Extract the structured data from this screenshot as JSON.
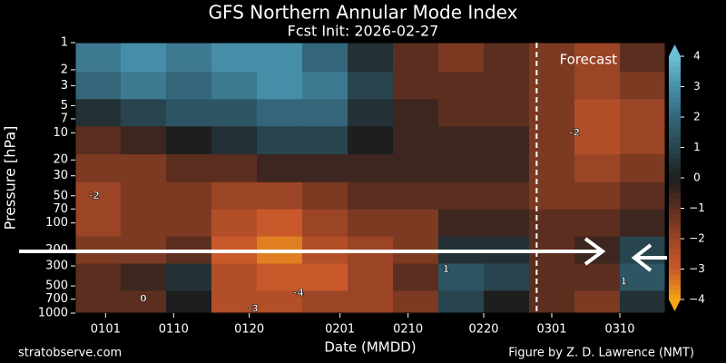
{
  "chart_data": {
    "type": "contour",
    "title": "GFS Northern Annular Mode Index",
    "subtitle": "Fcst Init: 2026-02-27",
    "xlabel": "Date (MMDD)",
    "ylabel": "Pressure [hPa]",
    "forecast_label": "Forecast",
    "forecast_x": 57,
    "source": "stratobserve.com",
    "credit": "Figure by Z. D. Lawrence (NMT)",
    "xlim": [
      -4,
      74
    ],
    "xticks": [
      {
        "value": 0,
        "label": "0101"
      },
      {
        "value": 9,
        "label": "0110"
      },
      {
        "value": 19,
        "label": "0120"
      },
      {
        "value": 31,
        "label": "0201"
      },
      {
        "value": 40,
        "label": "0210"
      },
      {
        "value": 50,
        "label": "0220"
      },
      {
        "value": 59,
        "label": "0301"
      },
      {
        "value": 68,
        "label": "0310"
      }
    ],
    "ylim": [
      1000,
      1
    ],
    "ylog": true,
    "yticks": [
      1,
      2,
      3,
      5,
      7,
      10,
      20,
      30,
      50,
      70,
      100,
      200,
      300,
      500,
      700,
      1000
    ],
    "x": [
      -1,
      5,
      11,
      17,
      23,
      29,
      35,
      41,
      47,
      53,
      59,
      65,
      71
    ],
    "y": [
      1.5,
      3,
      6,
      12,
      25,
      50,
      100,
      200,
      400,
      800
    ],
    "z": [
      [
        2.5,
        3,
        2.5,
        3,
        3,
        2,
        0.5,
        -1,
        -1.5,
        -1,
        -1.5,
        -2,
        -1
      ],
      [
        2,
        2.5,
        2,
        2.5,
        3,
        2.5,
        1,
        -1,
        -1,
        -1,
        -1.5,
        -2,
        -1.5
      ],
      [
        0.5,
        1,
        1.5,
        1.5,
        2,
        2,
        0.5,
        -0.5,
        -1,
        -1,
        -1.5,
        -2.5,
        -2
      ],
      [
        -1,
        -0.5,
        0,
        0.5,
        1,
        1,
        0,
        -0.5,
        -0.5,
        -0.5,
        -1.5,
        -2.5,
        -2
      ],
      [
        -1.5,
        -1.5,
        -1,
        -1,
        -0.5,
        -0.5,
        -0.5,
        -0.5,
        -0.5,
        -0.5,
        -1.5,
        -2,
        -1.5
      ],
      [
        -2,
        -1.5,
        -1.5,
        -2,
        -2,
        -1.5,
        -1,
        -1,
        -1,
        -1,
        -1.5,
        -1.5,
        -1
      ],
      [
        -2,
        -1.5,
        -1.5,
        -2.5,
        -3,
        -2,
        -1.5,
        -1.5,
        -0.5,
        -0.5,
        -1,
        -1,
        -0.5
      ],
      [
        -1.5,
        -1.5,
        -1,
        -3,
        -3.5,
        -2.5,
        -2,
        -1.5,
        0.5,
        0.5,
        -1,
        -0.5,
        1
      ],
      [
        -1,
        -0.5,
        0.5,
        -2.5,
        -3,
        -3,
        -2,
        -1,
        1.5,
        1,
        -1,
        -1,
        1.5
      ],
      [
        -1,
        -1,
        0,
        -2.5,
        -2.5,
        -2,
        -2,
        -1.5,
        1,
        0,
        -1,
        -1.5,
        0.5
      ]
    ],
    "levels": [
      -4,
      -3,
      -2,
      -1,
      0,
      1,
      2,
      3,
      4
    ],
    "colors": [
      "#f5a418",
      "#c9592a",
      "#9b4526",
      "#5c2e1f",
      "#1e1e1e",
      "#28444e",
      "#33667a",
      "#468ea8",
      "#6cc0d8"
    ],
    "cticks": [
      {
        "value": -4,
        "label": "−4"
      },
      {
        "value": -3,
        "label": "−3"
      },
      {
        "value": -2,
        "label": "−2"
      },
      {
        "value": -1,
        "label": "−1"
      },
      0,
      1,
      2,
      3,
      4
    ],
    "annotations": [
      {
        "text": "-2",
        "x": -1.5,
        "p": 50
      },
      {
        "text": "0",
        "x": 5,
        "p": 700
      },
      {
        "text": "-3",
        "x": 19.5,
        "p": 900
      },
      {
        "text": "-4",
        "x": 25.5,
        "p": 600
      },
      {
        "text": "1",
        "x": 45,
        "p": 330
      },
      {
        "text": "-2",
        "x": 62,
        "p": 10
      },
      {
        "text": "1",
        "x": 68.5,
        "p": 450
      }
    ]
  }
}
